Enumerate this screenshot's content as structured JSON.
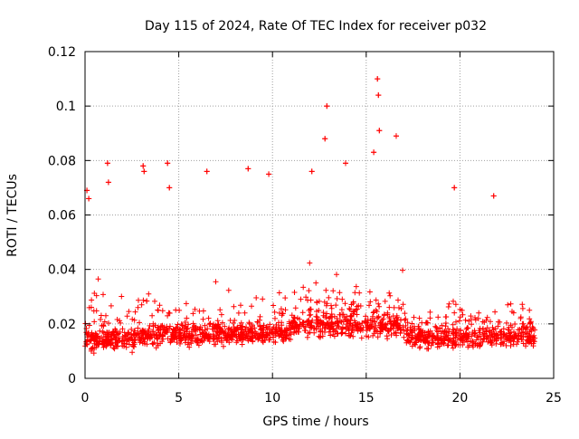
{
  "chart_data": {
    "type": "scatter",
    "title": "Day 115 of 2024, Rate Of TEC Index for receiver p032",
    "xlabel": "GPS time / hours",
    "ylabel": "ROTI / TECUs",
    "xlim": [
      0,
      25
    ],
    "ylim": [
      0,
      0.12
    ],
    "x_ticks": [
      0,
      5,
      10,
      15,
      20,
      25
    ],
    "y_ticks": [
      0,
      0.02,
      0.04,
      0.06,
      0.08,
      0.1,
      0.12
    ],
    "x_tick_labels": [
      "0",
      "5",
      "10",
      "15",
      "20",
      "25"
    ],
    "y_tick_labels": [
      "0",
      "0.02",
      "0.04",
      "0.06",
      "0.08",
      "0.1",
      "0.12"
    ],
    "grid": true,
    "marker": "+",
    "series": [
      {
        "name": "ROTI",
        "color": "#ff0000",
        "x_range_hours": [
          0,
          24
        ],
        "typical_range": [
          0.005,
          0.03
        ],
        "notable_points": [
          {
            "x": 0.1,
            "y": 0.069
          },
          {
            "x": 0.2,
            "y": 0.066
          },
          {
            "x": 1.2,
            "y": 0.079
          },
          {
            "x": 1.25,
            "y": 0.072
          },
          {
            "x": 3.1,
            "y": 0.078
          },
          {
            "x": 3.15,
            "y": 0.076
          },
          {
            "x": 4.4,
            "y": 0.079
          },
          {
            "x": 4.5,
            "y": 0.07
          },
          {
            "x": 6.5,
            "y": 0.076
          },
          {
            "x": 8.7,
            "y": 0.077
          },
          {
            "x": 9.8,
            "y": 0.075
          },
          {
            "x": 12.1,
            "y": 0.076
          },
          {
            "x": 12.8,
            "y": 0.088
          },
          {
            "x": 12.9,
            "y": 0.1
          },
          {
            "x": 13.9,
            "y": 0.079
          },
          {
            "x": 15.6,
            "y": 0.11
          },
          {
            "x": 15.65,
            "y": 0.104
          },
          {
            "x": 15.7,
            "y": 0.091
          },
          {
            "x": 15.4,
            "y": 0.083
          },
          {
            "x": 16.6,
            "y": 0.089
          },
          {
            "x": 19.7,
            "y": 0.07
          },
          {
            "x": 21.8,
            "y": 0.067
          }
        ]
      }
    ]
  }
}
